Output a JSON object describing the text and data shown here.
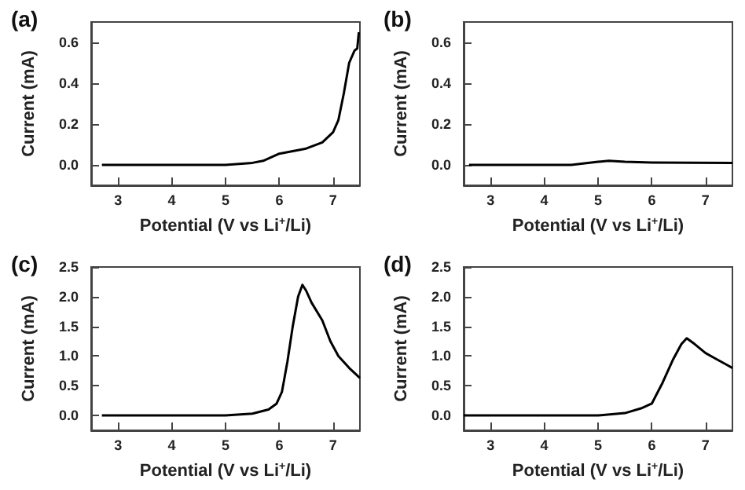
{
  "chart_data": [
    {
      "type": "line",
      "title": "(a)",
      "xlabel": "Potential (V vs Li$^{+}$/Li)",
      "ylabel": "Current (mA)",
      "xlim": [
        2.5,
        7.5
      ],
      "xticks": [
        3,
        4,
        5,
        6,
        7
      ],
      "ylim": [
        -0.1,
        0.7
      ],
      "yticks": [
        {
          "value": 0,
          "label": "0.0"
        },
        0.2,
        0.4,
        0.6
      ],
      "grid": false,
      "marker": "none",
      "line_style": "solid",
      "series": [
        {
          "color": "#000000",
          "x": [
            2.7,
            5.0,
            5.5,
            5.7,
            6.0,
            6.5,
            6.8,
            7.0,
            7.1,
            7.2,
            7.3,
            7.4,
            7.45,
            7.48
          ],
          "values": [
            0,
            0,
            0.01,
            0.02,
            0.055,
            0.08,
            0.11,
            0.16,
            0.22,
            0.35,
            0.5,
            0.56,
            0.57,
            0.65
          ]
        }
      ]
    },
    {
      "type": "line",
      "title": "(b)",
      "xlabel": "Potential (V vs Li$^{+}$/Li)",
      "ylabel": "Current (mA)",
      "xlim": [
        2.5,
        7.5
      ],
      "xticks": [
        3,
        4,
        5,
        6,
        7
      ],
      "ylim": [
        -0.1,
        0.7
      ],
      "yticks": [
        {
          "value": 0,
          "label": "0.0"
        },
        0.2,
        0.4,
        0.6
      ],
      "grid": false,
      "marker": "none",
      "line_style": "solid",
      "series": [
        {
          "color": "#000000",
          "x": [
            2.6,
            4.5,
            5.0,
            5.2,
            5.5,
            6.0,
            7.5
          ],
          "values": [
            0,
            0,
            0.015,
            0.02,
            0.015,
            0.012,
            0.01
          ]
        }
      ]
    },
    {
      "type": "line",
      "title": "(c)",
      "xlabel": "Potential (V vs Li$^{+}$/Li)",
      "ylabel": "Current (mA)",
      "xlim": [
        2.5,
        7.5
      ],
      "xticks": [
        3,
        4,
        5,
        6,
        7
      ],
      "ylim": [
        -0.25,
        2.5
      ],
      "yticks": [
        {
          "value": 0,
          "label": "0.0"
        },
        0.5,
        {
          "value": 1,
          "label": "1.0"
        },
        1.5,
        {
          "value": 2,
          "label": "2.0"
        },
        2.5
      ],
      "grid": false,
      "marker": "none",
      "line_style": "solid",
      "series": [
        {
          "color": "#000000",
          "x": [
            2.7,
            5.0,
            5.5,
            5.8,
            5.95,
            6.05,
            6.15,
            6.25,
            6.35,
            6.43,
            6.5,
            6.6,
            6.8,
            6.95,
            7.1,
            7.3,
            7.5
          ],
          "values": [
            0,
            0,
            0.03,
            0.1,
            0.2,
            0.4,
            0.9,
            1.5,
            2.0,
            2.2,
            2.1,
            1.9,
            1.6,
            1.25,
            1.0,
            0.8,
            0.63
          ]
        }
      ]
    },
    {
      "type": "line",
      "title": "(d)",
      "xlabel": "Potential (V vs Li$^{+}$/Li)",
      "ylabel": "Current (mA)",
      "xlim": [
        2.5,
        7.5
      ],
      "xticks": [
        3,
        4,
        5,
        6,
        7
      ],
      "ylim": [
        -0.25,
        2.5
      ],
      "yticks": [
        {
          "value": 0,
          "label": "0.0"
        },
        0.5,
        {
          "value": 1,
          "label": "1.0"
        },
        1.5,
        {
          "value": 2,
          "label": "2.0"
        },
        2.5
      ],
      "grid": false,
      "marker": "none",
      "line_style": "solid",
      "series": [
        {
          "color": "#000000",
          "x": [
            2.5,
            5.0,
            5.5,
            5.8,
            6.0,
            6.2,
            6.4,
            6.55,
            6.65,
            6.8,
            7.0,
            7.2,
            7.4,
            7.5
          ],
          "values": [
            0,
            0,
            0.04,
            0.12,
            0.2,
            0.55,
            0.95,
            1.2,
            1.3,
            1.2,
            1.05,
            0.95,
            0.85,
            0.8
          ]
        }
      ]
    }
  ]
}
